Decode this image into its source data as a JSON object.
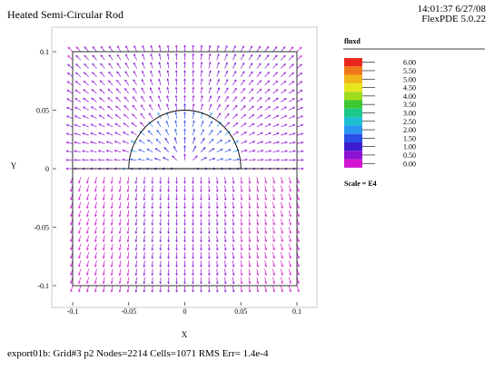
{
  "header": {
    "title": "Heated Semi-Circular Rod",
    "time_date": "14:01:37 6/27/08",
    "version": "FlexPDE 5.0.22"
  },
  "footer": {
    "status": "export01b:  Grid#3  p2  Nodes=2214 Cells=1071 RMS Err= 1.4e-4"
  },
  "chart_data": {
    "type": "vector-field",
    "xlabel": "X",
    "ylabel": "Y",
    "xlim": [
      -0.1,
      0.1
    ],
    "ylim": [
      -0.1,
      0.1
    ],
    "x_ticks": [
      "-0.1",
      "-0.05",
      "0",
      "0.05",
      "0.1"
    ],
    "y_ticks": [
      "0.1",
      "0.05",
      "0",
      "-0.05",
      "-0.1"
    ],
    "grid": false,
    "variable": "fluxd",
    "scale_label": "Scale = E4",
    "legend_levels": [
      "6.00",
      "5.50",
      "5.00",
      "4.50",
      "4.00",
      "3.50",
      "3.00",
      "2.50",
      "2.00",
      "1.50",
      "1.00",
      "0.50",
      "0.00"
    ],
    "legend_colors": [
      "#e8281c",
      "#f07818",
      "#f0b418",
      "#e6e61e",
      "#a0dc1e",
      "#3cc832",
      "#1ec88c",
      "#1ebed2",
      "#2896f0",
      "#2850e6",
      "#3c1ed2",
      "#8c14d2",
      "#d214d2"
    ],
    "rod": {
      "shape": "semicircle",
      "center": [
        0,
        0
      ],
      "radius": 0.05
    }
  }
}
